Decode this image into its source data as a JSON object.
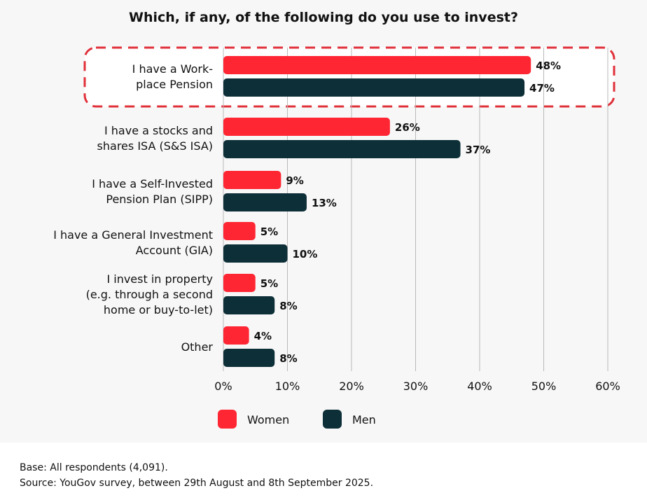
{
  "chart_data": {
    "type": "bar",
    "orientation": "horizontal",
    "title": "Which, if any, of the following do you use to invest?",
    "categories": [
      [
        "I have a Work-",
        "place Pension"
      ],
      [
        "I have a stocks and",
        "shares ISA (S&S ISA)"
      ],
      [
        "I have a Self-Invested",
        "Pension Plan (SIPP)"
      ],
      [
        "I have a General Investment",
        "Account (GIA)"
      ],
      [
        "I invest in property",
        "(e.g. through a second",
        "home or buy-to-let)"
      ],
      [
        "Other"
      ]
    ],
    "series": [
      {
        "name": "Women",
        "color": "#ff2633",
        "values": [
          48,
          26,
          9,
          5,
          5,
          4
        ],
        "labels": [
          "48%",
          "26%",
          "9%",
          "5%",
          "5%",
          "4%"
        ]
      },
      {
        "name": "Men",
        "color": "#0d2f38",
        "values": [
          47,
          37,
          13,
          10,
          8,
          8
        ],
        "labels": [
          "47%",
          "37%",
          "13%",
          "10%",
          "8%",
          "8%"
        ]
      }
    ],
    "xlim": [
      0,
      60
    ],
    "xticks": [
      "0%",
      "10%",
      "20%",
      "30%",
      "40%",
      "50%",
      "60%"
    ],
    "grid": true,
    "legend_position": "bottom",
    "highlighted_category": 0,
    "highlight_color": "#e0303a"
  },
  "footer": {
    "base": "Base: All respondents (4,091).",
    "source": "Source: YouGov survey, between 29th August and 8th September 2025."
  }
}
